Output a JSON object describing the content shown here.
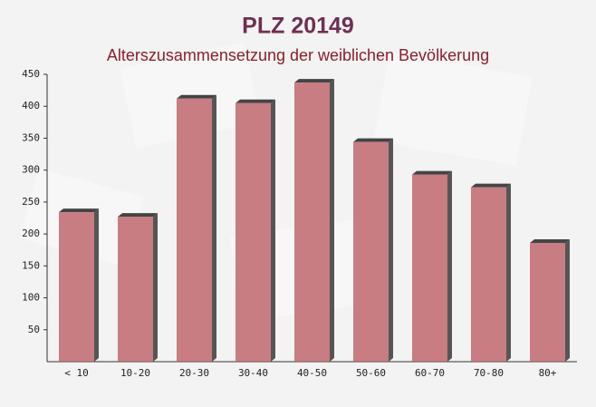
{
  "chart_data": {
    "type": "bar",
    "title": "PLZ 20149",
    "subtitle": "Alterszusammensetzung der weiblichen Bevölkerung",
    "categories": [
      "< 10",
      "10-20",
      "20-30",
      "30-40",
      "40-50",
      "50-60",
      "60-70",
      "70-80",
      "80+"
    ],
    "values": [
      234,
      227,
      412,
      405,
      437,
      344,
      293,
      273,
      186
    ],
    "color": "#c0676d",
    "ylim": [
      0,
      450
    ],
    "yticks": [
      50,
      100,
      150,
      200,
      250,
      300,
      350,
      400,
      450
    ]
  }
}
